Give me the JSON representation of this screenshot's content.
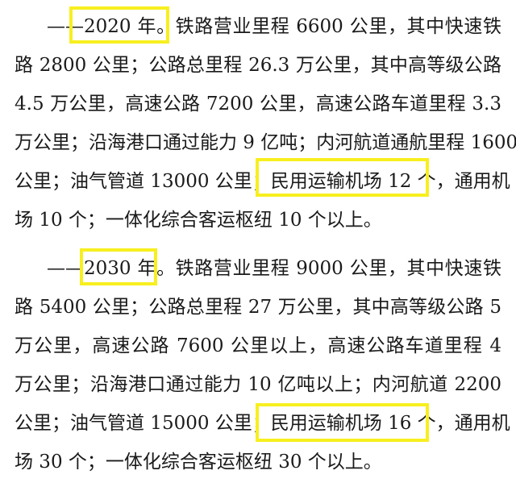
{
  "highlight_color": "#f7ef1f",
  "paragraphs": [
    {
      "lines": [
        "——2020 年。铁路营业里程 6600 公里，其中快速铁",
        "路 2800 公里；公路总里程 26.3 万公里，其中高等级公路",
        "4.5 万公里，高速公路 7200 公里，高速公路车道里程 3.3",
        "万公里；沿海港口通过能力 9 亿吨；内河航道通航里程 1600",
        "公里；油气管道 13000 公里；民用运输机场 12 个，通用机",
        "场 10 个；一体化综合客运枢纽 10 个以上。"
      ],
      "highlights": [
        "2020 年",
        "民用运输机场 12 个"
      ]
    },
    {
      "lines": [
        "——2030 年。铁路营业里程 9000 公里，其中快速铁",
        "路 5400 公里；公路总里程 27 万公里，其中高等级公路 5",
        "万公里，高速公路 7600 公里以上，高速公路车道里程 4",
        "万公里；沿海港口通过能力 10 亿吨以上；内河航道 2200",
        "公里；油气管道 15000 公里；民用运输机场 16 个，通用机",
        "场 30 个；一体化综合客运枢纽 30 个以上。"
      ],
      "highlights": [
        "2030 年",
        "民用运输机场 16 个"
      ]
    }
  ]
}
